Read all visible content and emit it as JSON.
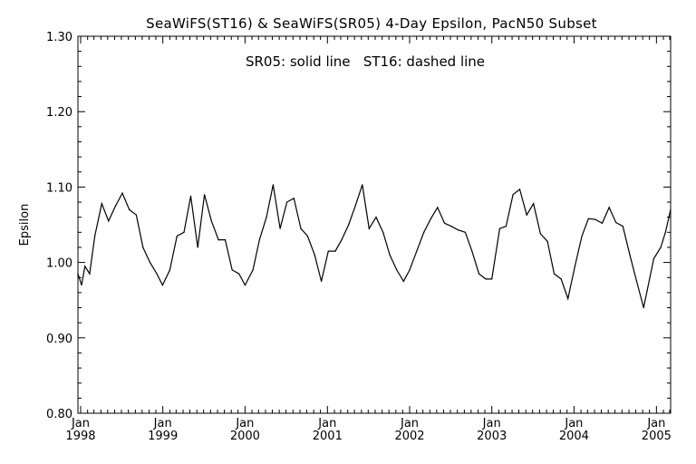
{
  "chart_data": {
    "type": "line",
    "title": "SeaWiFS(ST16) & SeaWiFS(SR05) 4-Day Epsilon, PacN50 Subset",
    "annotation": "SR05: solid line   ST16: dashed line",
    "ylabel": "Epsilon",
    "xlabel": "",
    "xlim": [
      "1997-12-20",
      "2005-03-05"
    ],
    "ylim": [
      0.8,
      1.3
    ],
    "yticks": [
      "0.80",
      "0.90",
      "1.00",
      "1.10",
      "1.20",
      "1.30"
    ],
    "xticks": [
      {
        "date": "1998-01-01",
        "month": "Jan",
        "year": "1998"
      },
      {
        "date": "1999-01-01",
        "month": "Jan",
        "year": "1999"
      },
      {
        "date": "2000-01-01",
        "month": "Jan",
        "year": "2000"
      },
      {
        "date": "2001-01-01",
        "month": "Jan",
        "year": "2001"
      },
      {
        "date": "2002-01-01",
        "month": "Jan",
        "year": "2002"
      },
      {
        "date": "2003-01-01",
        "month": "Jan",
        "year": "2003"
      },
      {
        "date": "2004-01-01",
        "month": "Jan",
        "year": "2004"
      },
      {
        "date": "2005-01-01",
        "month": "Jan",
        "year": "2005"
      }
    ],
    "grid": false,
    "series": [
      {
        "name": "SR05",
        "style": "solid",
        "x": [
          "1997-12-20",
          "1998-01-05",
          "1998-01-20",
          "1998-02-10",
          "1998-03-05",
          "1998-04-05",
          "1998-05-05",
          "1998-06-05",
          "1998-07-05",
          "1998-08-05",
          "1998-09-05",
          "1998-10-05",
          "1998-11-05",
          "1998-12-05",
          "1998-12-31",
          "1999-02-01",
          "1999-03-05",
          "1999-04-05",
          "1999-05-05",
          "1999-06-05",
          "1999-07-05",
          "1999-08-05",
          "1999-09-05",
          "1999-10-05",
          "1999-11-05",
          "1999-12-05",
          "2000-01-01",
          "2000-02-05",
          "2000-03-05",
          "2000-04-05",
          "2000-05-05",
          "2000-06-05",
          "2000-07-05",
          "2000-08-05",
          "2000-09-05",
          "2000-10-05",
          "2000-11-05",
          "2000-12-05",
          "2001-01-05",
          "2001-02-05",
          "2001-03-05",
          "2001-04-05",
          "2001-05-05",
          "2001-06-05",
          "2001-07-05",
          "2001-08-05",
          "2001-09-05",
          "2001-10-05",
          "2001-11-05",
          "2001-12-05",
          "2002-01-01",
          "2002-03-05",
          "2002-04-05",
          "2002-05-05",
          "2002-06-05",
          "2002-07-05",
          "2002-08-05",
          "2002-09-05",
          "2002-10-05",
          "2002-11-05",
          "2002-12-05",
          "2003-01-01",
          "2003-02-05",
          "2003-03-05",
          "2003-04-05",
          "2003-05-05",
          "2003-06-05",
          "2003-07-05",
          "2003-08-05",
          "2003-09-05",
          "2003-10-05",
          "2003-11-05",
          "2003-12-05",
          "2004-01-05",
          "2004-02-05",
          "2004-03-05",
          "2004-04-05",
          "2004-05-05",
          "2004-06-05",
          "2004-07-05",
          "2004-08-05",
          "2004-09-05",
          "2004-10-05",
          "2004-11-05",
          "2004-12-20",
          "2005-01-20",
          "2005-02-10",
          "2005-03-05"
        ],
        "y": [
          0.985,
          0.97,
          0.995,
          0.985,
          1.035,
          1.078,
          1.055,
          1.075,
          1.092,
          1.07,
          1.063,
          1.02,
          1.0,
          0.985,
          0.97,
          0.99,
          1.035,
          1.04,
          1.088,
          1.02,
          1.09,
          1.055,
          1.03,
          1.03,
          0.99,
          0.985,
          0.97,
          0.99,
          1.03,
          1.06,
          1.103,
          1.045,
          1.08,
          1.085,
          1.045,
          1.035,
          1.01,
          0.975,
          1.015,
          1.015,
          1.03,
          1.05,
          1.075,
          1.103,
          1.045,
          1.06,
          1.04,
          1.01,
          0.99,
          0.975,
          0.99,
          1.04,
          1.058,
          1.073,
          1.052,
          1.048,
          1.043,
          1.04,
          1.015,
          0.985,
          0.978,
          0.978,
          1.045,
          1.048,
          1.09,
          1.097,
          1.063,
          1.078,
          1.038,
          1.028,
          0.985,
          0.978,
          0.952,
          0.995,
          1.035,
          1.058,
          1.057,
          1.052,
          1.073,
          1.053,
          1.048,
          1.01,
          0.975,
          0.94,
          1.005,
          1.02,
          1.04,
          1.07
        ]
      }
    ]
  }
}
